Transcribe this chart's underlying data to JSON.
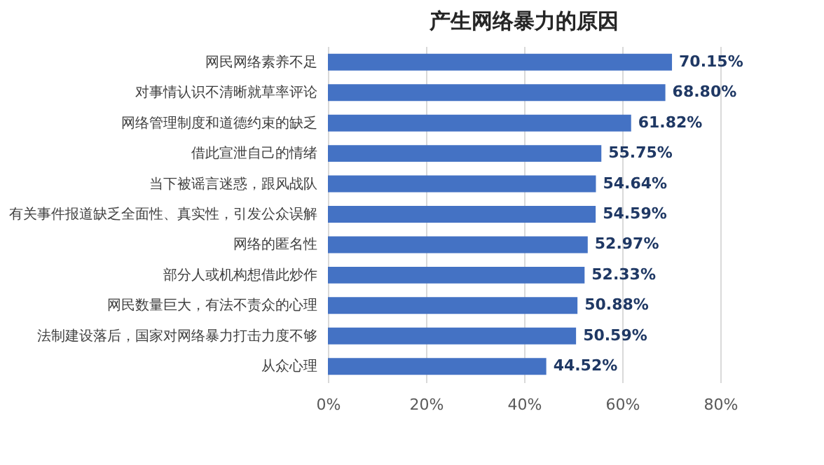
{
  "chart_data": {
    "type": "bar",
    "orientation": "horizontal",
    "title": "产生网络暴力的原因",
    "categories": [
      "网民网络素养不足",
      "对事情认识不清晰就草率评论",
      "网络管理制度和道德约束的缺乏",
      "借此宣泄自己的情绪",
      "当下被谣言迷惑，跟风战队",
      "有关事件报道缺乏全面性、真实性，引发公众误解",
      "网络的匿名性",
      "部分人或机构想借此炒作",
      "网民数量巨大，有法不责众的心理",
      "法制建设落后，国家对网络暴力打击力度不够",
      "从众心理"
    ],
    "values": [
      70.15,
      68.8,
      61.82,
      55.75,
      54.64,
      54.59,
      52.97,
      52.33,
      50.88,
      50.59,
      44.52
    ],
    "value_labels": [
      "70.15%",
      "68.80%",
      "61.82%",
      "55.75%",
      "54.64%",
      "54.59%",
      "52.97%",
      "52.33%",
      "50.88%",
      "50.59%",
      "44.52%"
    ],
    "color": "#4472c4",
    "xlim": [
      0,
      80
    ],
    "xticks": [
      {
        "value": 0,
        "label": "0%"
      },
      {
        "value": 20,
        "label": "20%"
      },
      {
        "value": 40,
        "label": "40%"
      },
      {
        "value": 60,
        "label": "60%"
      },
      {
        "value": 80,
        "label": "80%"
      }
    ],
    "grid": "x"
  }
}
